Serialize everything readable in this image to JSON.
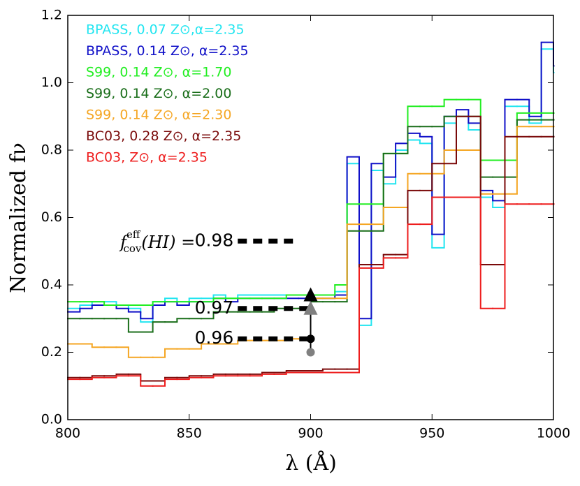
{
  "chart_data": {
    "type": "line",
    "drawstyle": "steps",
    "xlabel": "λ (Å)",
    "ylabel": "Normalized fν",
    "xlim": [
      800,
      1000
    ],
    "ylim": [
      0,
      1.2
    ],
    "xticks": [
      800,
      850,
      900,
      950,
      1000
    ],
    "yticks": [
      {
        "value": 0,
        "label": "0.0"
      },
      0.2,
      0.4,
      0.6,
      0.8,
      {
        "value": 1,
        "label": "1.0"
      },
      1.2
    ],
    "x": [
      800,
      805,
      810,
      815,
      820,
      825,
      830,
      835,
      840,
      845,
      850,
      855,
      860,
      865,
      870,
      875,
      880,
      885,
      890,
      895,
      900,
      905,
      910,
      915,
      920,
      925,
      930,
      935,
      940,
      945,
      950,
      955,
      960,
      965,
      970,
      975,
      980,
      985,
      990,
      995,
      1000
    ],
    "series": [
      {
        "name": "BPASS, 0.07 Z⊙,α=2.35",
        "color": "#22e5f0",
        "values": [
          0.33,
          0.34,
          0.35,
          0.35,
          0.34,
          0.33,
          0.29,
          0.35,
          0.36,
          0.35,
          0.36,
          0.36,
          0.37,
          0.36,
          0.37,
          0.37,
          0.37,
          0.37,
          0.37,
          0.37,
          0.37,
          0.37,
          0.38,
          0.76,
          0.28,
          0.74,
          0.7,
          0.8,
          0.83,
          0.82,
          0.51,
          0.88,
          0.9,
          0.86,
          0.66,
          0.63,
          0.93,
          0.93,
          0.88,
          1.1,
          1.03
        ]
      },
      {
        "name": "BPASS, 0.14 Z⊙, α=2.35",
        "color": "#1010c8",
        "values": [
          0.32,
          0.33,
          0.34,
          0.34,
          0.33,
          0.32,
          0.3,
          0.34,
          0.35,
          0.34,
          0.35,
          0.35,
          0.36,
          0.35,
          0.36,
          0.36,
          0.36,
          0.36,
          0.36,
          0.36,
          0.36,
          0.36,
          0.37,
          0.78,
          0.3,
          0.76,
          0.72,
          0.82,
          0.85,
          0.84,
          0.55,
          0.9,
          0.92,
          0.88,
          0.68,
          0.65,
          0.95,
          0.95,
          0.9,
          1.12,
          1.05
        ]
      },
      {
        "name": "S99, 0.14 Z⊙, α=1.70",
        "color": "#22ee22",
        "values": [
          0.35,
          0.35,
          0.35,
          0.34,
          0.34,
          0.34,
          0.34,
          0.35,
          0.35,
          0.35,
          0.35,
          0.35,
          0.36,
          0.36,
          0.36,
          0.36,
          0.36,
          0.36,
          0.37,
          0.37,
          0.37,
          0.37,
          0.4,
          0.64,
          0.64,
          0.64,
          0.79,
          0.79,
          0.93,
          0.93,
          0.93,
          0.95,
          0.95,
          0.95,
          0.77,
          0.77,
          0.77,
          0.91,
          0.91,
          0.91,
          0.91
        ]
      },
      {
        "name": "S99, 0.14 Z⊙, α=2.00",
        "color": "#1a6e1a",
        "values": [
          0.3,
          0.3,
          0.3,
          0.3,
          0.3,
          0.26,
          0.26,
          0.29,
          0.29,
          0.3,
          0.3,
          0.3,
          0.32,
          0.32,
          0.32,
          0.32,
          0.32,
          0.33,
          0.33,
          0.33,
          0.35,
          0.35,
          0.35,
          0.56,
          0.56,
          0.56,
          0.79,
          0.79,
          0.87,
          0.87,
          0.87,
          0.9,
          0.9,
          0.9,
          0.72,
          0.72,
          0.72,
          0.89,
          0.89,
          0.89,
          0.89
        ]
      },
      {
        "name": "S99, 0.14 Z⊙, α=2.30",
        "color": "#f5a623",
        "values": [
          0.225,
          0.225,
          0.215,
          0.215,
          0.215,
          0.185,
          0.185,
          0.185,
          0.21,
          0.21,
          0.21,
          0.225,
          0.225,
          0.225,
          0.235,
          0.235,
          0.235,
          0.235,
          0.24,
          0.24,
          0.36,
          0.36,
          0.36,
          0.58,
          0.58,
          0.58,
          0.63,
          0.63,
          0.73,
          0.73,
          0.73,
          0.8,
          0.8,
          0.8,
          0.67,
          0.67,
          0.67,
          0.87,
          0.87,
          0.87,
          0.87
        ]
      },
      {
        "name": "BC03, 0.28 Z⊙, α=2.35",
        "color": "#7a0a0a",
        "values": [
          0.125,
          0.125,
          0.13,
          0.13,
          0.135,
          0.135,
          0.115,
          0.115,
          0.125,
          0.125,
          0.13,
          0.13,
          0.135,
          0.135,
          0.135,
          0.135,
          0.14,
          0.14,
          0.145,
          0.145,
          0.145,
          0.15,
          0.15,
          0.15,
          0.46,
          0.46,
          0.49,
          0.49,
          0.68,
          0.68,
          0.76,
          0.76,
          0.9,
          0.9,
          0.46,
          0.46,
          0.84,
          0.84,
          0.84,
          0.84,
          0.84
        ]
      },
      {
        "name": "BC03, Z⊙, α=2.35",
        "color": "#ee1c1c",
        "values": [
          0.12,
          0.12,
          0.125,
          0.125,
          0.13,
          0.13,
          0.1,
          0.1,
          0.12,
          0.12,
          0.125,
          0.125,
          0.13,
          0.13,
          0.13,
          0.13,
          0.135,
          0.135,
          0.14,
          0.14,
          0.14,
          0.14,
          0.14,
          0.14,
          0.45,
          0.45,
          0.48,
          0.48,
          0.58,
          0.58,
          0.66,
          0.66,
          0.66,
          0.66,
          0.33,
          0.33,
          0.64,
          0.64,
          0.64,
          0.64,
          0.64
        ]
      }
    ],
    "covering_label": {
      "f": "f",
      "sup": "eff",
      "sub": "cov",
      "rest": "(HI) ="
    },
    "levels": [
      {
        "label": "0.98",
        "y": 0.53,
        "x": [
          870,
          894
        ]
      },
      {
        "label": "0.97",
        "y": 0.33,
        "x": [
          870,
          900
        ]
      },
      {
        "label": "0.96",
        "y": 0.24,
        "x": [
          870,
          900
        ]
      }
    ],
    "markers": [
      {
        "x": 900,
        "y": 0.33,
        "shape": "triangle",
        "color": "#808080"
      },
      {
        "x": 900,
        "y": 0.37,
        "shape": "triangle",
        "color": "#000000"
      },
      {
        "x": 900,
        "y": 0.2,
        "shape": "circle",
        "color": "#808080"
      },
      {
        "x": 900,
        "y": 0.24,
        "shape": "circle",
        "color": "#000000"
      }
    ]
  }
}
